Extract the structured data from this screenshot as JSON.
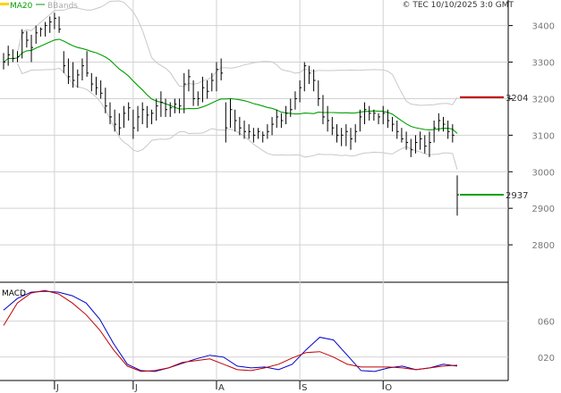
{
  "copyright": "© TEC 10/10/2025 3:0 GMT",
  "legend": {
    "ma": "MA20",
    "bb": "BBands"
  },
  "macd_label": "MACD",
  "colors": {
    "price": "#000000",
    "ma": "#00a000",
    "bbands": "#c8c8c8",
    "resistance": "#c00000",
    "support": "#00a000",
    "macd": "#0000c8",
    "signal": "#c00000",
    "grid": "#d2d2d2"
  },
  "chart_data": [
    {
      "type": "ohlc",
      "title": "",
      "x_months": [
        "J",
        "J",
        "A",
        "S",
        "O"
      ],
      "ylim": [
        2700,
        3470
      ],
      "y_ticks": [
        2800,
        2900,
        3000,
        3100,
        3200,
        3300,
        3400
      ],
      "levels": [
        {
          "name": "resistance",
          "value": 3204,
          "label": "3204"
        },
        {
          "name": "support",
          "value": 2937,
          "label": "2937"
        }
      ],
      "bars": [
        {
          "h": 3325,
          "l": 3280,
          "c": 3300
        },
        {
          "h": 3345,
          "l": 3290,
          "c": 3320
        },
        {
          "h": 3335,
          "l": 3300,
          "c": 3310
        },
        {
          "h": 3330,
          "l": 3300,
          "c": 3315
        },
        {
          "h": 3390,
          "l": 3310,
          "c": 3380
        },
        {
          "h": 3385,
          "l": 3340,
          "c": 3360
        },
        {
          "h": 3375,
          "l": 3300,
          "c": 3340
        },
        {
          "h": 3400,
          "l": 3350,
          "c": 3380
        },
        {
          "h": 3395,
          "l": 3370,
          "c": 3390
        },
        {
          "h": 3410,
          "l": 3370,
          "c": 3400
        },
        {
          "h": 3425,
          "l": 3380,
          "c": 3410
        },
        {
          "h": 3435,
          "l": 3390,
          "c": 3420
        },
        {
          "h": 3425,
          "l": 3380,
          "c": 3390
        },
        {
          "h": 3330,
          "l": 3270,
          "c": 3290
        },
        {
          "h": 3310,
          "l": 3240,
          "c": 3260
        },
        {
          "h": 3300,
          "l": 3230,
          "c": 3250
        },
        {
          "h": 3280,
          "l": 3230,
          "c": 3265
        },
        {
          "h": 3310,
          "l": 3250,
          "c": 3290
        },
        {
          "h": 3330,
          "l": 3260,
          "c": 3270
        },
        {
          "h": 3270,
          "l": 3220,
          "c": 3240
        },
        {
          "h": 3260,
          "l": 3210,
          "c": 3230
        },
        {
          "h": 3250,
          "l": 3200,
          "c": 3215
        },
        {
          "h": 3230,
          "l": 3160,
          "c": 3180
        },
        {
          "h": 3190,
          "l": 3130,
          "c": 3150
        },
        {
          "h": 3170,
          "l": 3110,
          "c": 3130
        },
        {
          "h": 3160,
          "l": 3100,
          "c": 3120
        },
        {
          "h": 3180,
          "l": 3120,
          "c": 3160
        },
        {
          "h": 3190,
          "l": 3140,
          "c": 3175
        },
        {
          "h": 3170,
          "l": 3090,
          "c": 3120
        },
        {
          "h": 3180,
          "l": 3110,
          "c": 3150
        },
        {
          "h": 3190,
          "l": 3130,
          "c": 3170
        },
        {
          "h": 3180,
          "l": 3120,
          "c": 3155
        },
        {
          "h": 3170,
          "l": 3130,
          "c": 3160
        },
        {
          "h": 3200,
          "l": 3140,
          "c": 3180
        },
        {
          "h": 3220,
          "l": 3150,
          "c": 3190
        },
        {
          "h": 3200,
          "l": 3150,
          "c": 3170
        },
        {
          "h": 3190,
          "l": 3150,
          "c": 3175
        },
        {
          "h": 3200,
          "l": 3160,
          "c": 3185
        },
        {
          "h": 3200,
          "l": 3160,
          "c": 3180
        },
        {
          "h": 3270,
          "l": 3160,
          "c": 3240
        },
        {
          "h": 3280,
          "l": 3220,
          "c": 3260
        },
        {
          "h": 3250,
          "l": 3180,
          "c": 3200
        },
        {
          "h": 3220,
          "l": 3180,
          "c": 3200
        },
        {
          "h": 3260,
          "l": 3190,
          "c": 3230
        },
        {
          "h": 3250,
          "l": 3200,
          "c": 3220
        },
        {
          "h": 3270,
          "l": 3220,
          "c": 3250
        },
        {
          "h": 3300,
          "l": 3220,
          "c": 3280
        },
        {
          "h": 3310,
          "l": 3250,
          "c": 3270
        },
        {
          "h": 3190,
          "l": 3080,
          "c": 3120
        },
        {
          "h": 3200,
          "l": 3120,
          "c": 3170
        },
        {
          "h": 3170,
          "l": 3110,
          "c": 3140
        },
        {
          "h": 3150,
          "l": 3100,
          "c": 3120
        },
        {
          "h": 3140,
          "l": 3090,
          "c": 3110
        },
        {
          "h": 3130,
          "l": 3090,
          "c": 3110
        },
        {
          "h": 3120,
          "l": 3080,
          "c": 3100
        },
        {
          "h": 3120,
          "l": 3090,
          "c": 3110
        },
        {
          "h": 3110,
          "l": 3080,
          "c": 3100
        },
        {
          "h": 3130,
          "l": 3090,
          "c": 3110
        },
        {
          "h": 3150,
          "l": 3100,
          "c": 3130
        },
        {
          "h": 3170,
          "l": 3120,
          "c": 3150
        },
        {
          "h": 3160,
          "l": 3120,
          "c": 3140
        },
        {
          "h": 3180,
          "l": 3130,
          "c": 3160
        },
        {
          "h": 3200,
          "l": 3150,
          "c": 3170
        },
        {
          "h": 3220,
          "l": 3170,
          "c": 3200
        },
        {
          "h": 3250,
          "l": 3190,
          "c": 3230
        },
        {
          "h": 3300,
          "l": 3220,
          "c": 3290
        },
        {
          "h": 3290,
          "l": 3240,
          "c": 3270
        },
        {
          "h": 3280,
          "l": 3220,
          "c": 3250
        },
        {
          "h": 3250,
          "l": 3180,
          "c": 3200
        },
        {
          "h": 3210,
          "l": 3130,
          "c": 3150
        },
        {
          "h": 3180,
          "l": 3110,
          "c": 3140
        },
        {
          "h": 3150,
          "l": 3100,
          "c": 3120
        },
        {
          "h": 3130,
          "l": 3080,
          "c": 3100
        },
        {
          "h": 3120,
          "l": 3070,
          "c": 3100
        },
        {
          "h": 3130,
          "l": 3070,
          "c": 3110
        },
        {
          "h": 3120,
          "l": 3060,
          "c": 3090
        },
        {
          "h": 3130,
          "l": 3080,
          "c": 3110
        },
        {
          "h": 3170,
          "l": 3110,
          "c": 3150
        },
        {
          "h": 3190,
          "l": 3130,
          "c": 3170
        },
        {
          "h": 3180,
          "l": 3140,
          "c": 3160
        },
        {
          "h": 3170,
          "l": 3140,
          "c": 3160
        },
        {
          "h": 3160,
          "l": 3130,
          "c": 3150
        },
        {
          "h": 3180,
          "l": 3130,
          "c": 3160
        },
        {
          "h": 3170,
          "l": 3120,
          "c": 3140
        },
        {
          "h": 3150,
          "l": 3110,
          "c": 3130
        },
        {
          "h": 3140,
          "l": 3090,
          "c": 3110
        },
        {
          "h": 3120,
          "l": 3080,
          "c": 3090
        },
        {
          "h": 3110,
          "l": 3060,
          "c": 3080
        },
        {
          "h": 3090,
          "l": 3040,
          "c": 3060
        },
        {
          "h": 3100,
          "l": 3050,
          "c": 3080
        },
        {
          "h": 3110,
          "l": 3060,
          "c": 3090
        },
        {
          "h": 3100,
          "l": 3050,
          "c": 3070
        },
        {
          "h": 3110,
          "l": 3040,
          "c": 3080
        },
        {
          "h": 3140,
          "l": 3080,
          "c": 3120
        },
        {
          "h": 3160,
          "l": 3110,
          "c": 3140
        },
        {
          "h": 3150,
          "l": 3110,
          "c": 3130
        },
        {
          "h": 3140,
          "l": 3090,
          "c": 3110
        },
        {
          "h": 3130,
          "l": 3080,
          "c": 3100
        },
        {
          "h": 2990,
          "l": 2880,
          "c": 2937
        }
      ]
    },
    {
      "type": "line",
      "title": "",
      "ylim": [
        -0.05,
        1.02
      ],
      "y_ticks": [
        0.2,
        0.6
      ],
      "y_tick_labels": [
        "020",
        "060"
      ],
      "series": [
        {
          "name": "MACD",
          "values": [
            0.72,
            0.85,
            0.92,
            0.93,
            0.92,
            0.88,
            0.8,
            0.62,
            0.35,
            0.12,
            0.05,
            0.04,
            0.08,
            0.13,
            0.18,
            0.22,
            0.2,
            0.1,
            0.08,
            0.09,
            0.06,
            0.12,
            0.28,
            0.42,
            0.39,
            0.22,
            0.05,
            0.04,
            0.08,
            0.1,
            0.06,
            0.08,
            0.12,
            0.1
          ]
        },
        {
          "name": "Signal",
          "values": [
            0.55,
            0.8,
            0.91,
            0.94,
            0.9,
            0.8,
            0.67,
            0.5,
            0.28,
            0.1,
            0.04,
            0.05,
            0.08,
            0.14,
            0.16,
            0.18,
            0.12,
            0.06,
            0.05,
            0.08,
            0.12,
            0.19,
            0.25,
            0.26,
            0.2,
            0.12,
            0.09,
            0.09,
            0.09,
            0.08,
            0.06,
            0.08,
            0.1,
            0.11
          ]
        }
      ]
    }
  ]
}
